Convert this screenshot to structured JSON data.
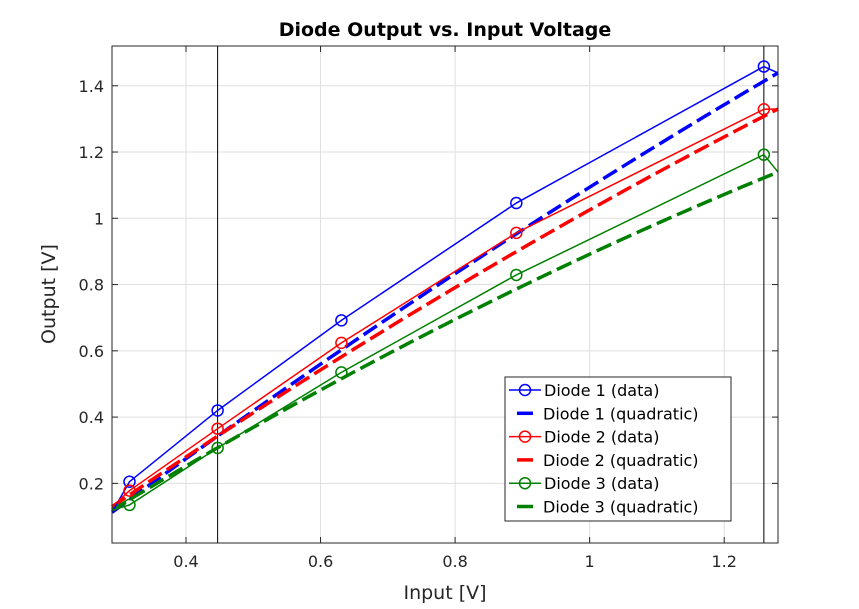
{
  "chart_data": {
    "type": "line",
    "title": "Diode Output vs. Input Voltage",
    "xlabel": "Input [V]",
    "ylabel": "Output [V]",
    "xlim": [
      0.29,
      1.28
    ],
    "ylim": [
      0.02,
      1.52
    ],
    "xticks": [
      0.4,
      0.6,
      0.8,
      1,
      1.2
    ],
    "xtick_labels": [
      "0.4",
      "0.6",
      "0.8",
      "1",
      "1.2"
    ],
    "yticks": [
      0.2,
      0.4,
      0.6,
      0.8,
      1,
      1.2,
      1.4
    ],
    "ytick_labels": [
      "0.2",
      "0.4",
      "0.6",
      "0.8",
      "1",
      "1.2",
      "1.4"
    ],
    "grid": true,
    "legend_position": "bottom-right",
    "vertical_lines": [
      0.447,
      1.259
    ],
    "x_data": [
      0.316,
      0.447,
      0.631,
      0.891,
      1.259
    ],
    "series": [
      {
        "name": "Diode 1 (data)",
        "kind": "data",
        "color": "#0000ff",
        "values": [
          0.205,
          0.42,
          0.692,
          1.046,
          1.458
        ]
      },
      {
        "name": "Diode 1 (quadratic)",
        "kind": "fit",
        "color": "#0000ff",
        "coef": [
          -0.1515,
          1.5775,
          -0.3322
        ]
      },
      {
        "name": "Diode 2 (data)",
        "kind": "data",
        "color": "#ff0000",
        "values": [
          0.178,
          0.365,
          0.624,
          0.956,
          1.329
        ]
      },
      {
        "name": "Diode 2 (quadratic)",
        "kind": "fit",
        "color": "#ff0000",
        "coef": [
          -0.176,
          1.489,
          -0.2877
        ]
      },
      {
        "name": "Diode 3 (data)",
        "kind": "data",
        "color": "#008000",
        "values": [
          0.135,
          0.307,
          0.535,
          0.829,
          1.192
        ]
      },
      {
        "name": "Diode 3 (quadratic)",
        "kind": "fit",
        "color": "#008000",
        "coef": [
          -0.2048,
          1.3525,
          -0.2561
        ]
      }
    ]
  }
}
